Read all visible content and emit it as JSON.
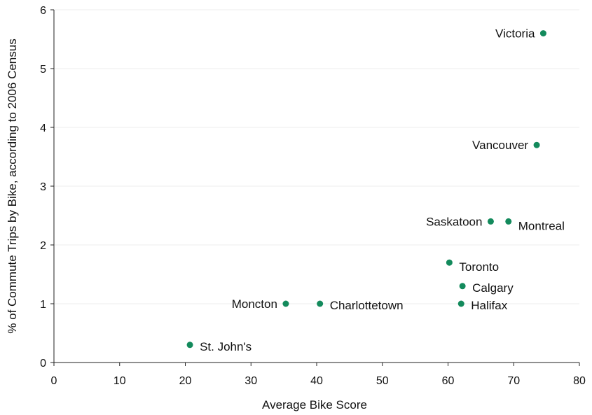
{
  "chart_data": {
    "type": "scatter",
    "title": "",
    "xlabel": "Average Bike Score",
    "ylabel": "% of Commute Trips by Bike, according to 2006 Census",
    "xlim": [
      0,
      80
    ],
    "ylim": [
      0,
      6
    ],
    "xticks": [
      0,
      10,
      20,
      30,
      40,
      50,
      60,
      70,
      80
    ],
    "yticks": [
      0,
      1,
      2,
      3,
      4,
      5,
      6
    ],
    "grid": "horizontal",
    "marker_color": "#138a5c",
    "points": [
      {
        "label": "Victoria",
        "x": 74.5,
        "y": 5.6,
        "label_side": "left"
      },
      {
        "label": "Vancouver",
        "x": 73.5,
        "y": 3.7,
        "label_side": "left"
      },
      {
        "label": "Saskatoon",
        "x": 66.5,
        "y": 2.4,
        "label_side": "left"
      },
      {
        "label": "Montreal",
        "x": 69.2,
        "y": 2.4,
        "label_side": "right-below"
      },
      {
        "label": "Toronto",
        "x": 60.2,
        "y": 1.7,
        "label_side": "right-below"
      },
      {
        "label": "Calgary",
        "x": 62.2,
        "y": 1.3,
        "label_side": "right"
      },
      {
        "label": "Halifax",
        "x": 62.0,
        "y": 1.0,
        "label_side": "right"
      },
      {
        "label": "Charlottetown",
        "x": 40.5,
        "y": 1.0,
        "label_side": "right"
      },
      {
        "label": "Moncton",
        "x": 35.3,
        "y": 1.0,
        "label_side": "left"
      },
      {
        "label": "St. John's",
        "x": 20.7,
        "y": 0.3,
        "label_side": "right"
      }
    ]
  }
}
